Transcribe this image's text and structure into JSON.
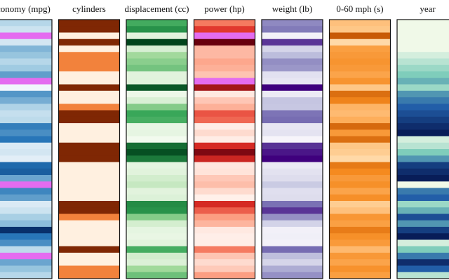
{
  "chart_data": {
    "type": "table-lens",
    "missing_color": "#e46cf0",
    "columns": [
      {
        "name": "economy (mpg)",
        "colors": [
          "#f0f6fc",
          "#9ecae1",
          "#2171b5",
          "#08306b"
        ],
        "values": [
          18,
          15,
          null,
          14,
          24,
          22,
          18,
          21,
          27,
          null,
          10,
          28,
          25,
          19,
          16,
          17,
          31,
          29,
          32,
          13,
          14,
          12,
          34,
          36,
          26,
          null,
          30,
          27,
          13,
          15,
          20,
          23,
          44,
          32,
          29,
          17,
          null,
          26,
          22,
          18
        ]
      },
      {
        "name": "cylinders",
        "colors": [
          "#fff0e0",
          "#fdae6b",
          "#e6550d",
          "#7f2704"
        ],
        "values": [
          8,
          8,
          4,
          8,
          4,
          6,
          6,
          6,
          4,
          4,
          8,
          4,
          4,
          6,
          8,
          8,
          4,
          4,
          4,
          8,
          8,
          8,
          4,
          4,
          4,
          4,
          4,
          4,
          8,
          8,
          6,
          4,
          4,
          4,
          4,
          8,
          4,
          4,
          6,
          6
        ]
      },
      {
        "name": "displacement (cc)",
        "colors": [
          "#f2faee",
          "#a1d99b",
          "#31a354",
          "#00441b"
        ],
        "values": [
          307,
          350,
          97,
          455,
          113,
          198,
          225,
          250,
          97,
          98,
          429,
          79,
          110,
          232,
          318,
          302,
          85,
          90,
          71,
          400,
          440,
          383,
          91,
          98,
          122,
          140,
          97,
          105,
          360,
          350,
          231,
          119,
          91,
          86,
          98,
          305,
          120,
          108,
          200,
          258
        ]
      },
      {
        "name": "power (hp)",
        "colors": [
          "#fff0ea",
          "#fc9272",
          "#de2d26",
          "#67000d"
        ],
        "values": [
          130,
          165,
          null,
          225,
          95,
          95,
          105,
          100,
          88,
          null,
          198,
          67,
          87,
          100,
          150,
          140,
          65,
          75,
          65,
          175,
          215,
          180,
          68,
          70,
          86,
          92,
          75,
          63,
          175,
          145,
          110,
          97,
          67,
          64,
          65,
          130,
          88,
          75,
          85,
          110
        ]
      },
      {
        "name": "weight (lb)",
        "colors": [
          "#f6f4fa",
          "#bcbddc",
          "#756bb1",
          "#3f007d"
        ],
        "values": [
          3504,
          3693,
          1835,
          4425,
          2372,
          2833,
          3439,
          3329,
          2130,
          2046,
          4952,
          1950,
          2672,
          2634,
          3777,
          3870,
          2020,
          2108,
          1773,
          4464,
          4735,
          4955,
          1985,
          2125,
          2220,
          2572,
          2171,
          2215,
          3821,
          4440,
          3415,
          2405,
          1850,
          1875,
          1836,
          3880,
          2790,
          2380,
          3060,
          3410
        ]
      },
      {
        "name": "0-60 mph (s)",
        "colors": [
          "#ffd9a8",
          "#fdae5b",
          "#f58a1f",
          "#c85a06"
        ],
        "values": [
          12,
          11.5,
          20.5,
          10,
          15,
          15.5,
          16,
          15.5,
          14.5,
          16,
          11.5,
          19,
          17.5,
          13,
          12.5,
          13.5,
          19.4,
          15.5,
          19,
          11.5,
          11,
          10,
          18.2,
          17,
          15.5,
          16.4,
          14.5,
          16.5,
          11,
          12,
          15.8,
          14.9,
          18,
          16.4,
          15.4,
          12.6,
          15.6,
          14.5,
          16.2,
          15
        ]
      },
      {
        "name": "year",
        "colors": [
          "#f0f9e8",
          "#7fcdbb",
          "#225ea8",
          "#081d58"
        ],
        "values": [
          70,
          70,
          70,
          70,
          70,
          71,
          72,
          73,
          74,
          75,
          73,
          76,
          77,
          78,
          79,
          80,
          81,
          82,
          71,
          72,
          74,
          76,
          80,
          81,
          82,
          70,
          77,
          78,
          73,
          75,
          79,
          76,
          80,
          82,
          71,
          74,
          77,
          81,
          78,
          72
        ]
      }
    ]
  }
}
